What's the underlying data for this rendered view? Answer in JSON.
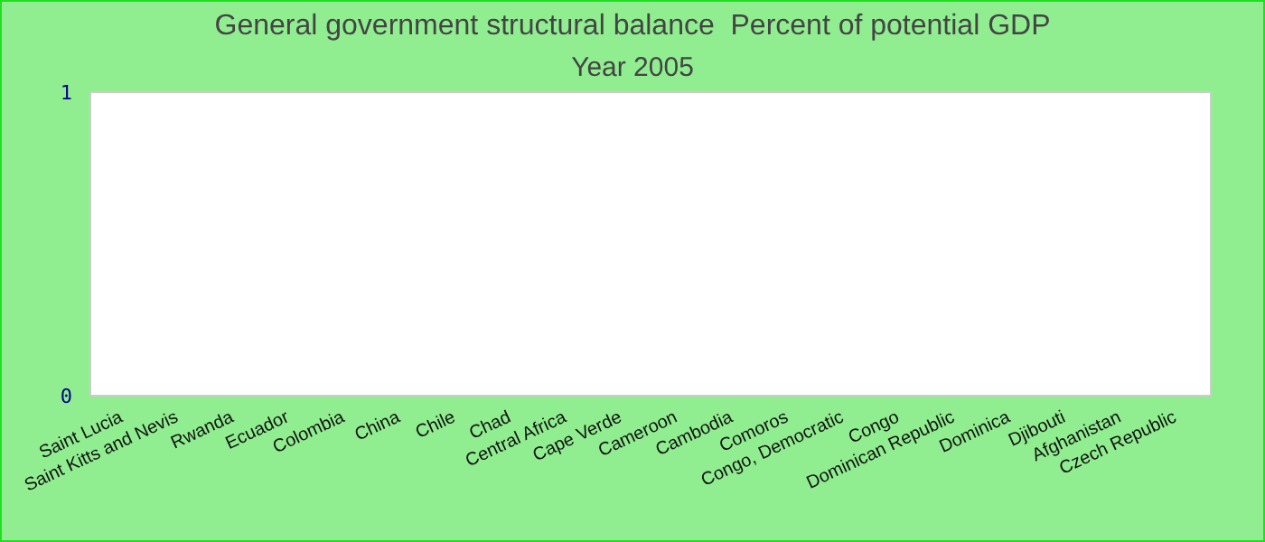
{
  "chart_data": {
    "type": "bar",
    "title": "General government structural balance  Percent of potential GDP",
    "subtitle": "Year 2005",
    "categories": [
      "Saint Lucia",
      "Saint Kitts and Nevis",
      "Rwanda",
      "Ecuador",
      "Colombia",
      "China",
      "Chile",
      "Chad",
      "Central Africa",
      "Cape Verde",
      "Cameroon",
      "Cambodia",
      "Comoros",
      "Congo, Democratic",
      "Congo",
      "Dominican Republic",
      "Dominica",
      "Djibouti",
      "Afghanistan",
      "Czech Republic"
    ],
    "values": [
      null,
      null,
      null,
      null,
      null,
      null,
      null,
      null,
      null,
      null,
      null,
      null,
      null,
      null,
      null,
      null,
      null,
      null,
      null,
      null
    ],
    "ylim": [
      0,
      1
    ],
    "yticks": [
      0,
      1
    ]
  }
}
